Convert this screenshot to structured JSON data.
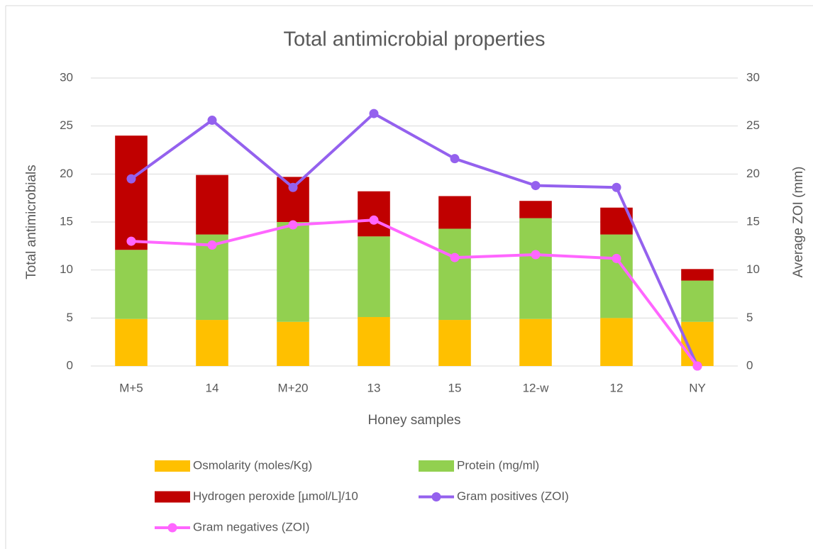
{
  "chart_data": {
    "type": "bar",
    "title": "Total antimicrobial properties",
    "x_label": "Honey samples",
    "y_label": "Total antimicrobials",
    "y2_label": "Average ZOI (mm)",
    "categories": [
      "M+5",
      "14",
      "M+20",
      "13",
      "15",
      "12-w",
      "12",
      "NY"
    ],
    "series": [
      {
        "name": "Osmolarity (moles/Kg)",
        "type": "bar",
        "color": "#ffc000",
        "values": [
          4.9,
          4.8,
          4.6,
          5.1,
          4.8,
          4.9,
          5.0,
          4.6
        ]
      },
      {
        "name": "Protein (mg/ml)",
        "type": "bar",
        "color": "#92d050",
        "values": [
          7.2,
          8.9,
          10.4,
          8.4,
          9.5,
          10.5,
          8.7,
          4.3
        ]
      },
      {
        "name": "Hydrogen peroxide [µmol/L]/10",
        "type": "bar",
        "color": "#c00000",
        "values": [
          11.9,
          6.2,
          4.7,
          4.7,
          3.4,
          1.8,
          2.8,
          1.2
        ]
      },
      {
        "name": "Gram positives (ZOI)",
        "type": "line",
        "axis": "y2",
        "color": "#9461ee",
        "values": [
          19.5,
          25.6,
          18.6,
          26.3,
          21.6,
          18.8,
          18.6,
          0
        ]
      },
      {
        "name": "Gram negatives (ZOI)",
        "type": "line",
        "axis": "y2",
        "color": "#ff66ff",
        "values": [
          13.0,
          12.6,
          14.7,
          15.2,
          11.3,
          11.6,
          11.2,
          0
        ]
      }
    ],
    "ylim": [
      0,
      30
    ],
    "yticks": [
      0,
      5,
      10,
      15,
      20,
      25,
      30
    ],
    "y2lim": [
      0,
      30
    ],
    "y2ticks": [
      0,
      5,
      10,
      15,
      20,
      25,
      30
    ],
    "grid": true,
    "legend": "bottom"
  }
}
